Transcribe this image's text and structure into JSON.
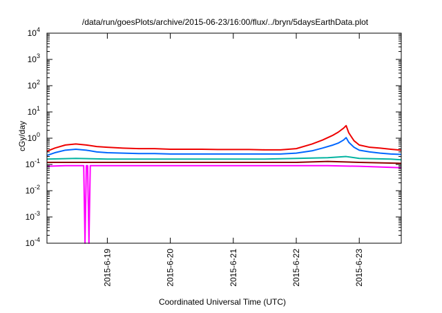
{
  "chart_data": {
    "type": "line",
    "title": "/data/run/goesPlots/archive/2015-06-23/16:00/flux/../bryn/5daysEarthData.plot",
    "xlabel": "Coordinated Universal Time (UTC)",
    "ylabel": "cGy/day",
    "yscale": "log",
    "ylim": [
      0.0001,
      10000
    ],
    "xlim": [
      "2015-06-18 01:00",
      "2015-06-23 16:00"
    ],
    "grid": false,
    "legend": "none",
    "y_ticks": [
      {
        "value": 0.0001,
        "base": "10",
        "exp": "-4"
      },
      {
        "value": 0.001,
        "base": "10",
        "exp": "-3"
      },
      {
        "value": 0.01,
        "base": "10",
        "exp": "-2"
      },
      {
        "value": 0.1,
        "base": "10",
        "exp": "-1"
      },
      {
        "value": 1,
        "base": "10",
        "exp": "0"
      },
      {
        "value": 10,
        "base": "10",
        "exp": "1"
      },
      {
        "value": 100,
        "base": "10",
        "exp": "2"
      },
      {
        "value": 1000,
        "base": "10",
        "exp": "3"
      },
      {
        "value": 10000,
        "base": "10",
        "exp": "4"
      }
    ],
    "x_ticks": [
      {
        "value": "2015-06-19 00:00",
        "label": "2015-6-19"
      },
      {
        "value": "2015-06-20 00:00",
        "label": "2015-6-20"
      },
      {
        "value": "2015-06-21 00:00",
        "label": "2015-6-21"
      },
      {
        "value": "2015-06-22 00:00",
        "label": "2015-6-22"
      },
      {
        "value": "2015-06-23 00:00",
        "label": "2015-6-23"
      }
    ],
    "series": [
      {
        "color": "#ee0000",
        "x": [
          "2015-06-18 01:00",
          "2015-06-18 04:00",
          "2015-06-18 08:00",
          "2015-06-18 12:00",
          "2015-06-18 16:00",
          "2015-06-18 20:00",
          "2015-06-19 00:00",
          "2015-06-19 06:00",
          "2015-06-19 12:00",
          "2015-06-19 18:00",
          "2015-06-20 00:00",
          "2015-06-20 06:00",
          "2015-06-20 12:00",
          "2015-06-20 18:00",
          "2015-06-21 00:00",
          "2015-06-21 06:00",
          "2015-06-21 12:00",
          "2015-06-21 18:00",
          "2015-06-22 00:00",
          "2015-06-22 06:00",
          "2015-06-22 10:00",
          "2015-06-22 14:00",
          "2015-06-22 16:00",
          "2015-06-22 18:00",
          "2015-06-22 19:00",
          "2015-06-22 20:00",
          "2015-06-22 22:00",
          "2015-06-23 00:00",
          "2015-06-23 04:00",
          "2015-06-23 08:00",
          "2015-06-23 12:00",
          "2015-06-23 16:00"
        ],
        "y": [
          0.32,
          0.42,
          0.55,
          0.6,
          0.55,
          0.48,
          0.45,
          0.42,
          0.4,
          0.4,
          0.38,
          0.38,
          0.38,
          0.37,
          0.37,
          0.37,
          0.36,
          0.36,
          0.4,
          0.6,
          0.85,
          1.3,
          1.7,
          2.4,
          3.0,
          1.6,
          0.8,
          0.55,
          0.45,
          0.42,
          0.38,
          0.35
        ]
      },
      {
        "color": "#0066ff",
        "x": [
          "2015-06-18 01:00",
          "2015-06-18 04:00",
          "2015-06-18 08:00",
          "2015-06-18 12:00",
          "2015-06-18 16:00",
          "2015-06-18 20:00",
          "2015-06-19 00:00",
          "2015-06-19 06:00",
          "2015-06-19 12:00",
          "2015-06-19 18:00",
          "2015-06-20 00:00",
          "2015-06-20 06:00",
          "2015-06-20 12:00",
          "2015-06-20 18:00",
          "2015-06-21 00:00",
          "2015-06-21 06:00",
          "2015-06-21 12:00",
          "2015-06-21 18:00",
          "2015-06-22 00:00",
          "2015-06-22 06:00",
          "2015-06-22 10:00",
          "2015-06-22 14:00",
          "2015-06-22 16:00",
          "2015-06-22 18:00",
          "2015-06-22 19:00",
          "2015-06-22 20:00",
          "2015-06-22 22:00",
          "2015-06-23 00:00",
          "2015-06-23 04:00",
          "2015-06-23 08:00",
          "2015-06-23 12:00",
          "2015-06-23 16:00"
        ],
        "y": [
          0.22,
          0.28,
          0.35,
          0.38,
          0.35,
          0.3,
          0.28,
          0.27,
          0.26,
          0.26,
          0.25,
          0.25,
          0.25,
          0.25,
          0.25,
          0.25,
          0.25,
          0.25,
          0.27,
          0.33,
          0.42,
          0.55,
          0.65,
          0.85,
          1.05,
          0.7,
          0.45,
          0.35,
          0.3,
          0.27,
          0.25,
          0.24
        ]
      },
      {
        "color": "#00b3a0",
        "x": [
          "2015-06-18 01:00",
          "2015-06-18 12:00",
          "2015-06-19 00:00",
          "2015-06-19 12:00",
          "2015-06-20 00:00",
          "2015-06-20 12:00",
          "2015-06-21 00:00",
          "2015-06-21 12:00",
          "2015-06-22 00:00",
          "2015-06-22 12:00",
          "2015-06-22 19:00",
          "2015-06-23 00:00",
          "2015-06-23 12:00",
          "2015-06-23 16:00"
        ],
        "y": [
          0.16,
          0.17,
          0.16,
          0.16,
          0.16,
          0.16,
          0.16,
          0.16,
          0.17,
          0.18,
          0.2,
          0.17,
          0.16,
          0.15
        ]
      },
      {
        "color": "#8b0000",
        "x": [
          "2015-06-18 01:00",
          "2015-06-18 12:00",
          "2015-06-19 00:00",
          "2015-06-19 12:00",
          "2015-06-20 00:00",
          "2015-06-20 12:00",
          "2015-06-21 00:00",
          "2015-06-21 12:00",
          "2015-06-22 00:00",
          "2015-06-22 12:00",
          "2015-06-23 00:00",
          "2015-06-23 16:00"
        ],
        "y": [
          0.12,
          0.12,
          0.12,
          0.12,
          0.12,
          0.12,
          0.12,
          0.12,
          0.12,
          0.13,
          0.12,
          0.11
        ]
      },
      {
        "color": "#ff00ff",
        "x": [
          "2015-06-18 01:00",
          "2015-06-18 08:00",
          "2015-06-18 15:00",
          "2015-06-18 15:30",
          "2015-06-18 16:00",
          "2015-06-18 16:30",
          "2015-06-18 17:00",
          "2015-06-18 17:30",
          "2015-06-19 00:00",
          "2015-06-19 12:00",
          "2015-06-20 00:00",
          "2015-06-20 12:00",
          "2015-06-21 00:00",
          "2015-06-21 12:00",
          "2015-06-22 00:00",
          "2015-06-22 12:00",
          "2015-06-23 00:00",
          "2015-06-23 16:00"
        ],
        "y": [
          0.085,
          0.09,
          0.09,
          0.0001,
          0.09,
          0.09,
          0.0001,
          0.09,
          0.09,
          0.09,
          0.09,
          0.09,
          0.09,
          0.09,
          0.09,
          0.09,
          0.085,
          0.075
        ]
      }
    ]
  }
}
